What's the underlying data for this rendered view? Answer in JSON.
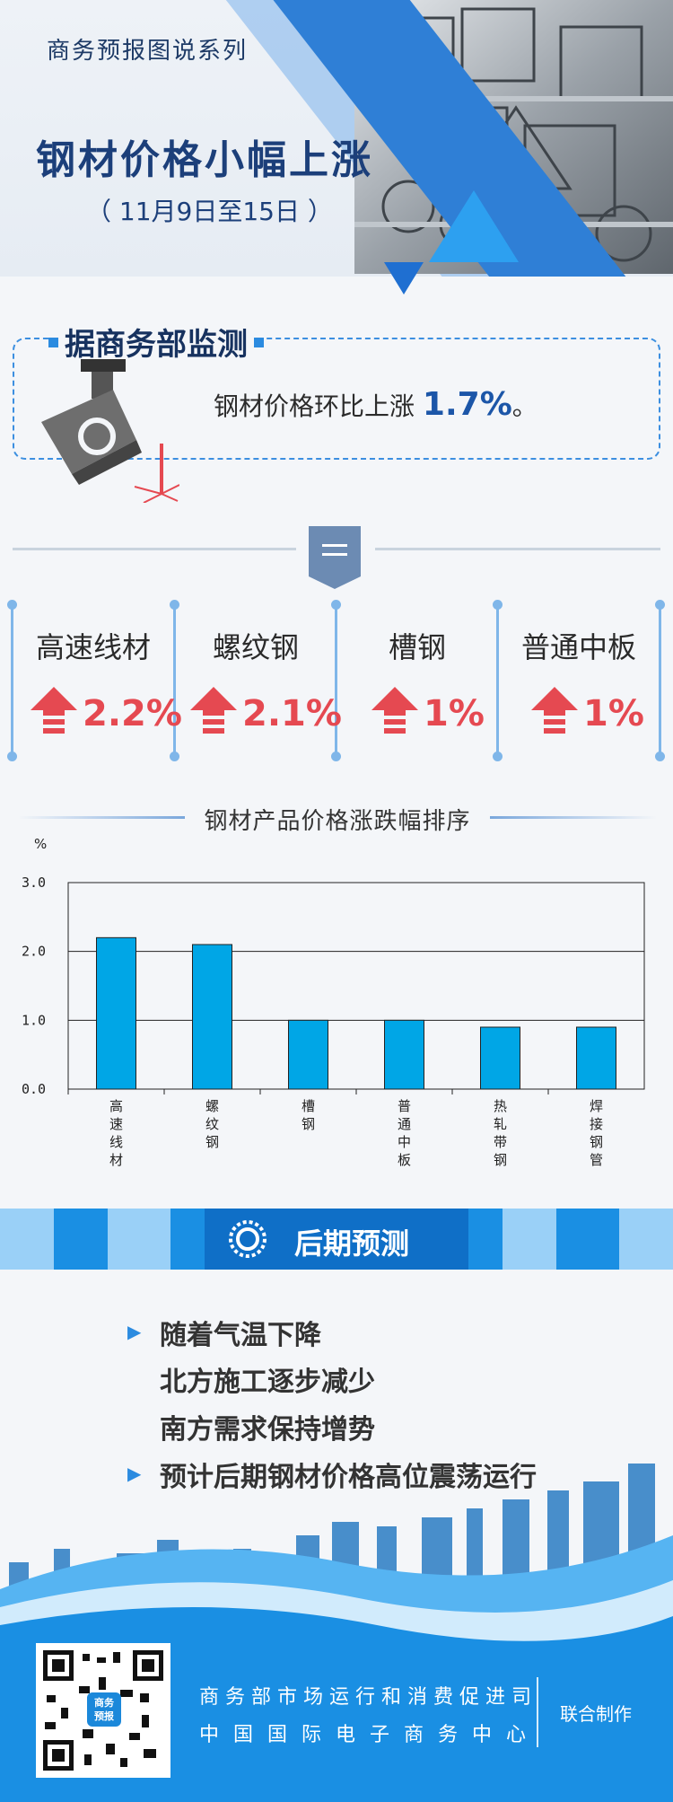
{
  "header": {
    "series": "商务预报图说系列",
    "title": "钢材价格小幅上涨",
    "date_range": "（ 11月9日至15日 ）"
  },
  "monitor": {
    "title": "据商务部监测",
    "text_prefix": "钢材价格环比上涨",
    "value": "1.7%",
    "text_suffix": "。"
  },
  "products": [
    {
      "name": "高速线材",
      "value": "2.2%"
    },
    {
      "name": "螺纹钢",
      "value": "2.1%"
    },
    {
      "name": "槽钢",
      "value": "1%"
    },
    {
      "name": "普通中板",
      "value": "1%"
    }
  ],
  "chart_data": {
    "type": "bar",
    "title": "钢材产品价格涨跌幅排序",
    "ylabel": "%",
    "categories": [
      "高速线材",
      "螺纹钢",
      "槽钢",
      "普通中板",
      "热轧带钢",
      "焊接钢管"
    ],
    "values": [
      2.2,
      2.1,
      1.0,
      1.0,
      0.9,
      0.9
    ],
    "ylim": [
      0,
      3
    ],
    "yticks": [
      "0.0",
      "1.0",
      "2.0",
      "3.0"
    ],
    "grid": true,
    "bar_color": "#00a6e6"
  },
  "forecast": {
    "title": "后期预测",
    "items": [
      {
        "text": "随着气温下降",
        "bullet": true
      },
      {
        "text": "北方施工逐步减少",
        "bullet": false
      },
      {
        "text": "南方需求保持增势",
        "bullet": false
      },
      {
        "text": "预计后期钢材价格高位震荡运行",
        "bullet": true
      }
    ]
  },
  "footer": {
    "org1": "商务部市场运行和消费促进司",
    "org2": "中国国际电子商务中心",
    "jointly": "联合制作",
    "qr_badge_1": "商务",
    "qr_badge_2": "预报"
  },
  "colors": {
    "accent": "#2b8be0",
    "rise": "#e54951",
    "title": "#1c3f7a"
  }
}
